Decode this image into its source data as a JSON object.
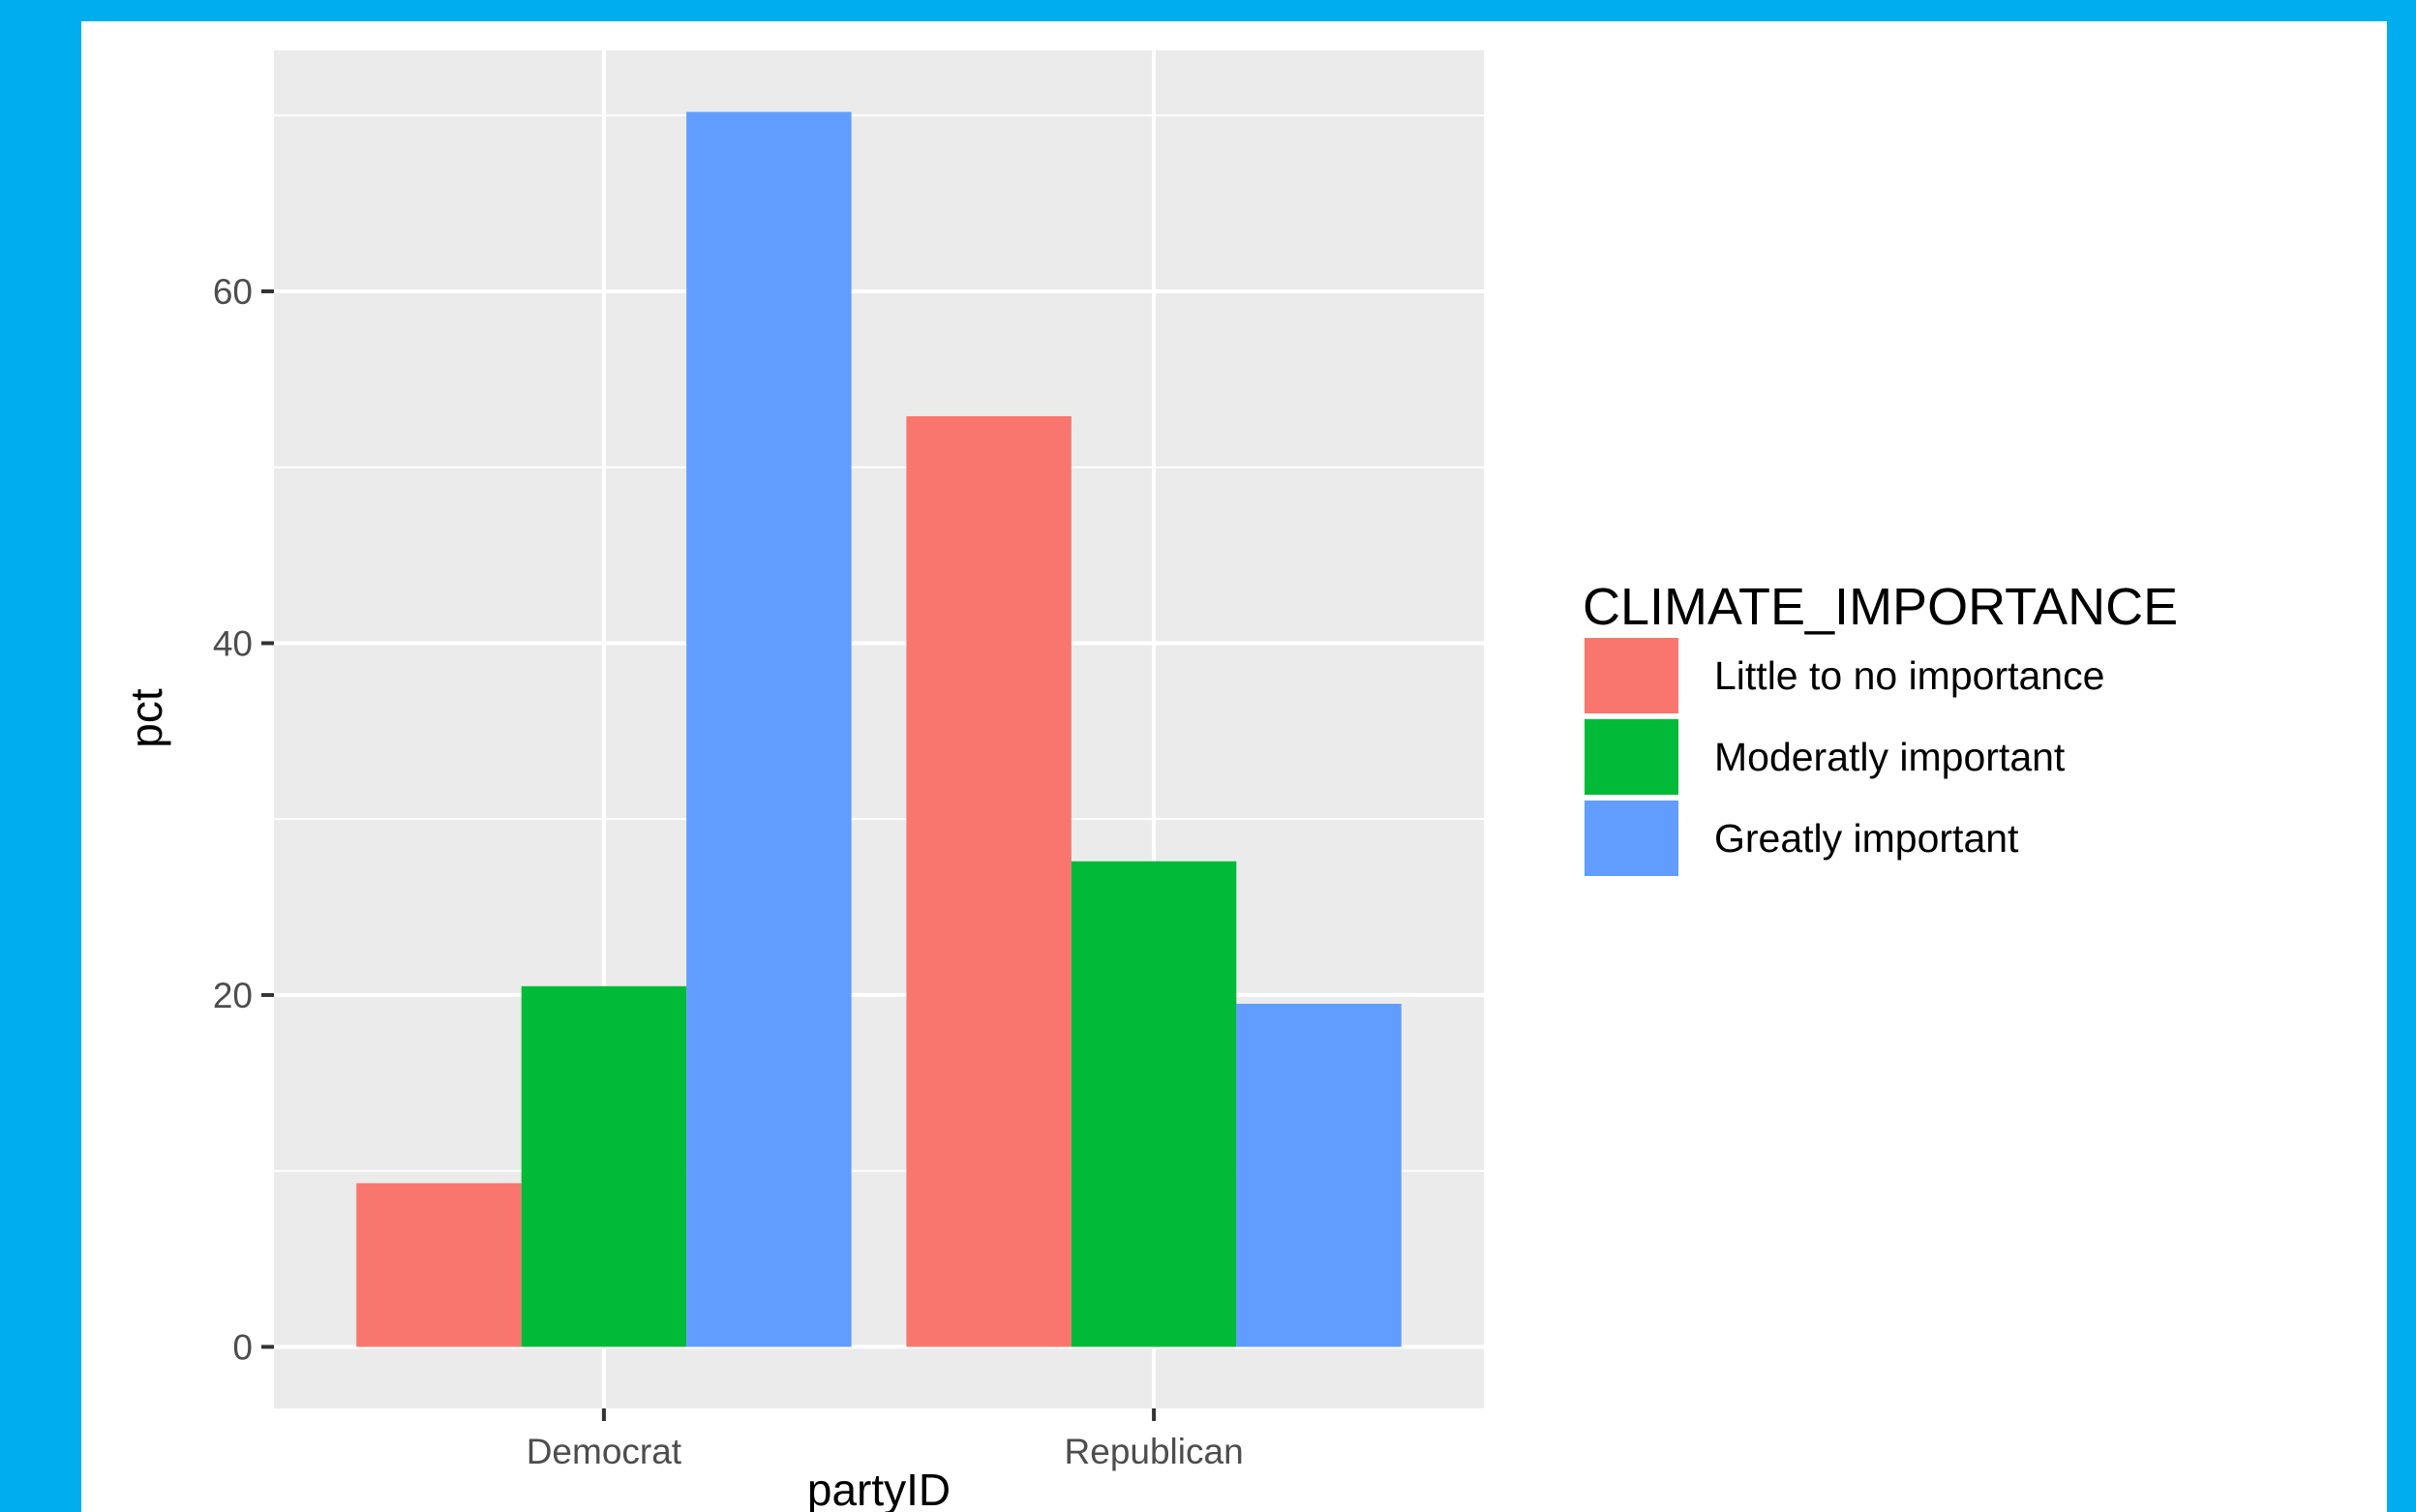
{
  "colors": {
    "background": "#00AEEF",
    "panel": "#EBEBEB",
    "grid": "#FFFFFF",
    "tick_text": "#4D4D4D"
  },
  "chart_data": {
    "type": "bar",
    "title": "",
    "xlabel": "partyID",
    "ylabel": "pct",
    "categories": [
      "Democrat",
      "Republican"
    ],
    "series": [
      {
        "name": "Little to no importance",
        "color": "#F8766D",
        "values": [
          9.3,
          52.9
        ]
      },
      {
        "name": "Moderatly important",
        "color": "#00BA38",
        "values": [
          20.5,
          27.6
        ]
      },
      {
        "name": "Greatly important",
        "color": "#619CFF",
        "values": [
          70.2,
          19.5
        ]
      }
    ],
    "ylim": [
      -3.5,
      73.7
    ],
    "yticks": [
      0,
      20,
      40,
      60
    ],
    "ytick_labels": [
      "0",
      "20",
      "40",
      "60"
    ],
    "grid": true,
    "legend": {
      "title": "CLIMATE_IMPORTANCE",
      "position": "right"
    }
  }
}
